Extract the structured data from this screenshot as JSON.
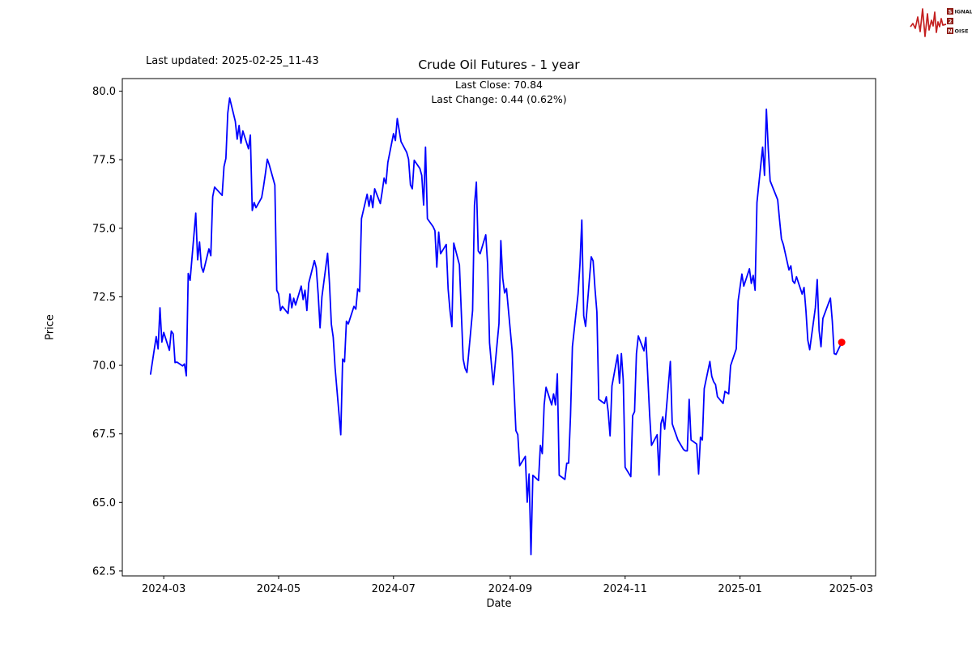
{
  "header": {
    "last_updated": "Last updated: 2025-02-25_11-43",
    "title": "Crude Oil Futures - 1 year",
    "subtitle_line1": "Last Close: 70.84",
    "subtitle_line2": "Last Change: 0.44 (0.62%)"
  },
  "logo": {
    "row1_boxed": "S",
    "row1_rest": "IGNAL",
    "row2_boxed": "2",
    "row2_rest": "",
    "row3_boxed": "N",
    "row3_rest": "OISE",
    "waveform_color": "#c42020",
    "box_color": "#8e1b14",
    "text_color": "#1a1a1a"
  },
  "chart_data": {
    "type": "line",
    "title": "Crude Oil Futures - 1 year",
    "xlabel": "Date",
    "ylabel": "Price",
    "line_color": "#0000ff",
    "marker_color": "#ff0000",
    "grid": false,
    "x_ticks": [
      "2024-03",
      "2024-05",
      "2024-07",
      "2024-09",
      "2024-11",
      "2025-01",
      "2025-03"
    ],
    "y_ticks": [
      62.5,
      65.0,
      67.5,
      70.0,
      72.5,
      75.0,
      77.5,
      80.0
    ],
    "xlim": [
      "2024-02-08",
      "2025-03-14"
    ],
    "ylim": [
      62.32,
      80.46
    ],
    "last_close": 70.84,
    "last_change": 0.44,
    "last_change_pct": 0.62,
    "last_point": {
      "date": "2025-02-24",
      "value": 70.84
    },
    "series": [
      {
        "name": "Close",
        "dates": [
          "2024-02-23",
          "2024-02-26",
          "2024-02-27",
          "2024-02-28",
          "2024-02-29",
          "2024-03-01",
          "2024-03-04",
          "2024-03-05",
          "2024-03-06",
          "2024-03-07",
          "2024-03-08",
          "2024-03-11",
          "2024-03-12",
          "2024-03-13",
          "2024-03-14",
          "2024-03-15",
          "2024-03-18",
          "2024-03-19",
          "2024-03-20",
          "2024-03-21",
          "2024-03-22",
          "2024-03-25",
          "2024-03-26",
          "2024-03-27",
          "2024-03-28",
          "2024-04-01",
          "2024-04-02",
          "2024-04-03",
          "2024-04-04",
          "2024-04-05",
          "2024-04-08",
          "2024-04-09",
          "2024-04-10",
          "2024-04-11",
          "2024-04-12",
          "2024-04-15",
          "2024-04-16",
          "2024-04-17",
          "2024-04-18",
          "2024-04-19",
          "2024-04-22",
          "2024-04-23",
          "2024-04-24",
          "2024-04-25",
          "2024-04-26",
          "2024-04-29",
          "2024-04-30",
          "2024-05-01",
          "2024-05-02",
          "2024-05-03",
          "2024-05-06",
          "2024-05-07",
          "2024-05-08",
          "2024-05-09",
          "2024-05-10",
          "2024-05-13",
          "2024-05-14",
          "2024-05-15",
          "2024-05-16",
          "2024-05-17",
          "2024-05-20",
          "2024-05-21",
          "2024-05-22",
          "2024-05-23",
          "2024-05-24",
          "2024-05-27",
          "2024-05-28",
          "2024-05-29",
          "2024-05-30",
          "2024-05-31",
          "2024-06-03",
          "2024-06-04",
          "2024-06-05",
          "2024-06-06",
          "2024-06-07",
          "2024-06-10",
          "2024-06-11",
          "2024-06-12",
          "2024-06-13",
          "2024-06-14",
          "2024-06-17",
          "2024-06-18",
          "2024-06-19",
          "2024-06-20",
          "2024-06-21",
          "2024-06-24",
          "2024-06-25",
          "2024-06-26",
          "2024-06-27",
          "2024-06-28",
          "2024-07-01",
          "2024-07-02",
          "2024-07-03",
          "2024-07-05",
          "2024-07-08",
          "2024-07-09",
          "2024-07-10",
          "2024-07-11",
          "2024-07-12",
          "2024-07-15",
          "2024-07-16",
          "2024-07-17",
          "2024-07-18",
          "2024-07-19",
          "2024-07-22",
          "2024-07-23",
          "2024-07-24",
          "2024-07-25",
          "2024-07-26",
          "2024-07-29",
          "2024-07-30",
          "2024-07-31",
          "2024-08-01",
          "2024-08-02",
          "2024-08-05",
          "2024-08-06",
          "2024-08-07",
          "2024-08-08",
          "2024-08-09",
          "2024-08-12",
          "2024-08-13",
          "2024-08-14",
          "2024-08-15",
          "2024-08-16",
          "2024-08-19",
          "2024-08-20",
          "2024-08-21",
          "2024-08-22",
          "2024-08-23",
          "2024-08-26",
          "2024-08-27",
          "2024-08-28",
          "2024-08-29",
          "2024-08-30",
          "2024-09-02",
          "2024-09-03",
          "2024-09-04",
          "2024-09-05",
          "2024-09-06",
          "2024-09-09",
          "2024-09-10",
          "2024-09-11",
          "2024-09-12",
          "2024-09-13",
          "2024-09-16",
          "2024-09-17",
          "2024-09-18",
          "2024-09-19",
          "2024-09-20",
          "2024-09-23",
          "2024-09-24",
          "2024-09-25",
          "2024-09-26",
          "2024-09-27",
          "2024-09-30",
          "2024-10-01",
          "2024-10-02",
          "2024-10-03",
          "2024-10-04",
          "2024-10-07",
          "2024-10-08",
          "2024-10-09",
          "2024-10-10",
          "2024-10-11",
          "2024-10-14",
          "2024-10-15",
          "2024-10-16",
          "2024-10-17",
          "2024-10-18",
          "2024-10-21",
          "2024-10-22",
          "2024-10-23",
          "2024-10-24",
          "2024-10-25",
          "2024-10-28",
          "2024-10-29",
          "2024-10-30",
          "2024-10-31",
          "2024-11-01",
          "2024-11-04",
          "2024-11-05",
          "2024-11-06",
          "2024-11-07",
          "2024-11-08",
          "2024-11-11",
          "2024-11-12",
          "2024-11-13",
          "2024-11-14",
          "2024-11-15",
          "2024-11-18",
          "2024-11-19",
          "2024-11-20",
          "2024-11-21",
          "2024-11-22",
          "2024-11-25",
          "2024-11-26",
          "2024-11-27",
          "2024-11-29",
          "2024-12-02",
          "2024-12-03",
          "2024-12-04",
          "2024-12-05",
          "2024-12-06",
          "2024-12-09",
          "2024-12-10",
          "2024-12-11",
          "2024-12-12",
          "2024-12-13",
          "2024-12-16",
          "2024-12-17",
          "2024-12-18",
          "2024-12-19",
          "2024-12-20",
          "2024-12-23",
          "2024-12-24",
          "2024-12-26",
          "2024-12-27",
          "2024-12-30",
          "2024-12-31",
          "2025-01-02",
          "2025-01-03",
          "2025-01-06",
          "2025-01-07",
          "2025-01-08",
          "2025-01-09",
          "2025-01-10",
          "2025-01-13",
          "2025-01-14",
          "2025-01-15",
          "2025-01-16",
          "2025-01-17",
          "2025-01-21",
          "2025-01-22",
          "2025-01-23",
          "2025-01-24",
          "2025-01-27",
          "2025-01-28",
          "2025-01-29",
          "2025-01-30",
          "2025-01-31",
          "2025-02-03",
          "2025-02-04",
          "2025-02-05",
          "2025-02-06",
          "2025-02-07",
          "2025-02-10",
          "2025-02-11",
          "2025-02-12",
          "2025-02-13",
          "2025-02-14",
          "2025-02-18",
          "2025-02-19",
          "2025-02-20",
          "2025-02-21",
          "2025-02-24"
        ],
        "values": [
          69.68,
          71.05,
          70.6,
          72.1,
          70.85,
          71.2,
          70.55,
          71.25,
          71.15,
          70.1,
          70.12,
          69.98,
          70.05,
          69.62,
          73.35,
          73.1,
          75.55,
          73.85,
          74.5,
          73.6,
          73.4,
          74.25,
          74.0,
          76.15,
          76.5,
          76.2,
          77.25,
          77.55,
          79.2,
          79.75,
          78.9,
          78.25,
          78.75,
          78.1,
          78.55,
          77.9,
          78.4,
          75.65,
          75.94,
          75.75,
          76.12,
          76.53,
          77.0,
          77.52,
          77.32,
          76.58,
          72.74,
          72.6,
          72.0,
          72.15,
          71.89,
          72.6,
          72.1,
          72.45,
          72.2,
          72.89,
          72.4,
          72.74,
          72.0,
          73.0,
          73.82,
          73.55,
          72.6,
          71.37,
          72.5,
          74.09,
          73.0,
          71.5,
          71.02,
          69.9,
          67.47,
          70.23,
          70.13,
          71.61,
          71.51,
          72.15,
          72.05,
          72.79,
          72.69,
          75.35,
          76.24,
          75.8,
          76.19,
          75.75,
          76.44,
          75.9,
          76.34,
          76.83,
          76.63,
          77.4,
          78.45,
          78.2,
          79.0,
          78.16,
          77.77,
          77.52,
          76.58,
          76.44,
          77.48,
          77.18,
          76.93,
          75.85,
          77.96,
          75.35,
          75.06,
          74.91,
          73.58,
          74.86,
          74.07,
          74.41,
          72.79,
          72.0,
          71.41,
          74.46,
          73.67,
          71.95,
          70.23,
          69.89,
          69.74,
          72.0,
          75.84,
          76.68,
          74.17,
          74.07,
          74.76,
          73.67,
          70.82,
          70.04,
          69.3,
          71.52,
          74.55,
          73.18,
          72.64,
          72.8,
          70.53,
          69.15,
          67.62,
          67.47,
          66.34,
          66.68,
          65.01,
          66.04,
          63.1,
          65.99,
          65.8,
          67.08,
          66.78,
          68.56,
          69.2,
          68.56,
          68.96,
          68.56,
          69.69,
          65.99,
          65.84,
          66.43,
          66.43,
          68.17,
          70.68,
          72.6,
          73.67,
          75.3,
          71.81,
          71.42,
          73.96,
          73.81,
          72.79,
          71.95,
          68.76,
          68.61,
          68.85,
          68.31,
          67.43,
          69.25,
          70.38,
          69.35,
          70.43,
          69.45,
          66.28,
          65.94,
          68.17,
          68.31,
          70.43,
          71.07,
          70.53,
          71.02,
          69.64,
          68.21,
          67.08,
          67.47,
          66.0,
          67.87,
          68.12,
          67.67,
          70.14,
          67.87,
          67.67,
          67.28,
          66.93,
          66.88,
          66.88,
          68.76,
          67.28,
          67.13,
          66.04,
          67.38,
          67.28,
          69.15,
          70.14,
          69.6,
          69.4,
          69.3,
          68.86,
          68.61,
          69.05,
          68.96,
          69.99,
          70.6,
          72.35,
          73.33,
          72.89,
          73.52,
          72.99,
          73.28,
          72.74,
          75.94,
          77.96,
          76.93,
          79.34,
          77.9,
          76.73,
          76.04,
          75.3,
          74.61,
          74.41,
          73.48,
          73.63,
          73.08,
          72.99,
          73.23,
          72.6,
          72.84,
          72.0,
          70.92,
          70.57,
          72.1,
          73.13,
          71.27,
          70.68,
          71.71,
          72.45,
          71.61,
          70.43,
          70.4,
          70.84
        ]
      }
    ]
  }
}
